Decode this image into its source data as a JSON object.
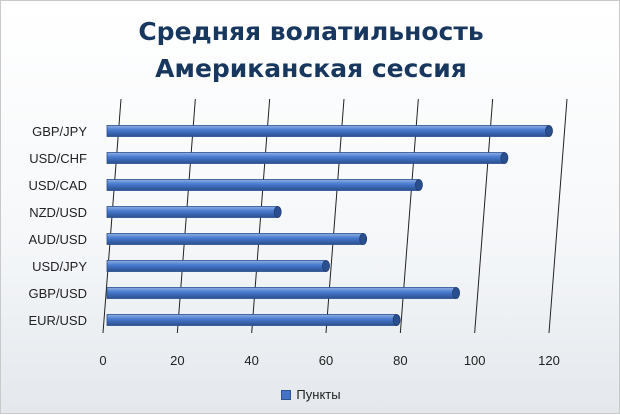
{
  "chart_data": {
    "type": "bar",
    "orientation": "horizontal",
    "title_lines": [
      "Средняя волатильность",
      "Американская сессия"
    ],
    "categories": [
      "GBP/JPY",
      "USD/CHF",
      "USD/CAD",
      "NZD/USD",
      "AUD/USD",
      "USD/JPY",
      "GBP/USD",
      "EUR/USD"
    ],
    "series": [
      {
        "name": "Пункты",
        "values": [
          120,
          108,
          85,
          47,
          70,
          60,
          95,
          79
        ]
      }
    ],
    "xlim": [
      0,
      120
    ],
    "xticks": [
      0,
      20,
      40,
      60,
      80,
      100,
      120
    ],
    "grid": true,
    "legend_position": "bottom",
    "colors": {
      "bar": "#4472c4",
      "bar_dark": "#2a4f8f",
      "bar_light": "#8fb0e3",
      "grid": "#222222"
    }
  }
}
